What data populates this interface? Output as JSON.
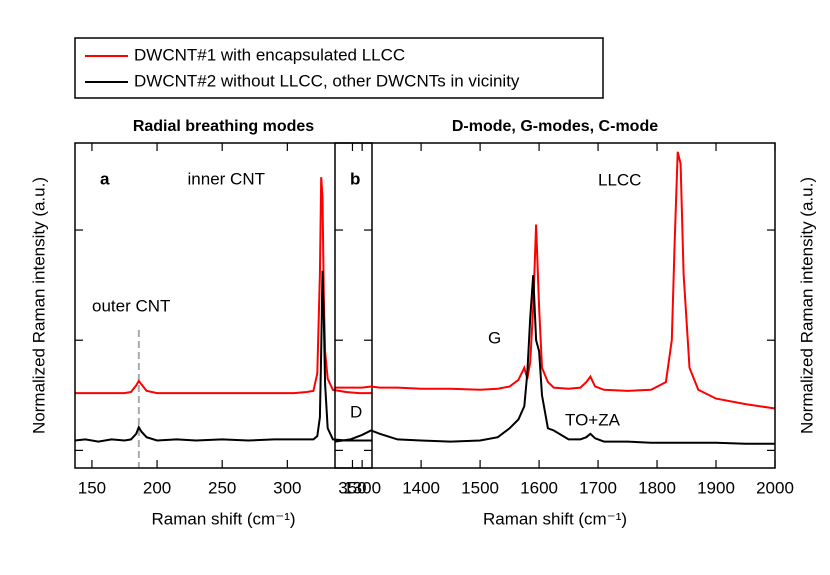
{
  "chart_data": [
    {
      "type": "line",
      "title": "Radial breathing modes",
      "x_label": "Raman shift (cm⁻¹)",
      "y_label": "Normalized Raman intensity (a.u.)",
      "xlim": [
        137,
        365
      ],
      "xticks": [
        150,
        200,
        250,
        300,
        350
      ],
      "ylim": [
        -0.16,
        2.79
      ],
      "yticks": [
        0,
        1,
        2
      ],
      "x": [
        137,
        145,
        155,
        165,
        175,
        180,
        184,
        186,
        188,
        192,
        200,
        215,
        230,
        250,
        270,
        290,
        305,
        315,
        320,
        323,
        325,
        326,
        327,
        328,
        329,
        331,
        335,
        345,
        355,
        365
      ],
      "series": [
        {
          "name": "DWCNT#1 with encapsulated LLCC",
          "color": "#ff0000",
          "values": [
            0.52,
            0.52,
            0.52,
            0.52,
            0.52,
            0.53,
            0.59,
            0.63,
            0.6,
            0.54,
            0.52,
            0.52,
            0.52,
            0.52,
            0.52,
            0.52,
            0.52,
            0.53,
            0.54,
            0.7,
            1.6,
            2.48,
            2.3,
            1.4,
            0.9,
            0.65,
            0.55,
            0.53,
            0.52,
            0.52
          ]
        },
        {
          "name": "DWCNT#2 without LLCC, other DWCNTs in vicinity",
          "color": "#000000",
          "values": [
            0.09,
            0.1,
            0.08,
            0.1,
            0.09,
            0.1,
            0.15,
            0.21,
            0.17,
            0.12,
            0.09,
            0.1,
            0.09,
            0.1,
            0.09,
            0.1,
            0.1,
            0.1,
            0.1,
            0.13,
            0.3,
            0.9,
            1.63,
            1.2,
            0.6,
            0.2,
            0.1,
            0.09,
            0.09,
            0.09
          ]
        }
      ],
      "vline": 186,
      "annotations": [
        {
          "text": "a",
          "color": "#000000"
        },
        {
          "text": "inner CNT",
          "color": "#808080"
        },
        {
          "text": "outer CNT",
          "color": "#808080"
        }
      ]
    },
    {
      "type": "line",
      "title": "D-mode, G-modes, C-mode",
      "x_label": "Raman shift (cm⁻¹)",
      "y_label": "Normalized Raman intensity (a.u.)",
      "xlim": [
        1254,
        2000
      ],
      "xticks": [
        1300,
        1400,
        1500,
        1600,
        1700,
        1800,
        1900,
        2000
      ],
      "ylim": [
        -0.16,
        2.79
      ],
      "yticks": [
        0,
        1,
        2
      ],
      "x": [
        1254,
        1280,
        1300,
        1315,
        1330,
        1360,
        1400,
        1450,
        1500,
        1530,
        1550,
        1565,
        1575,
        1580,
        1585,
        1590,
        1595,
        1600,
        1605,
        1615,
        1625,
        1650,
        1670,
        1680,
        1687,
        1695,
        1710,
        1750,
        1790,
        1815,
        1825,
        1830,
        1835,
        1840,
        1845,
        1855,
        1870,
        1900,
        1950,
        2000
      ],
      "series": [
        {
          "color": "#ff0000",
          "values": [
            0.57,
            0.57,
            0.57,
            0.58,
            0.57,
            0.57,
            0.56,
            0.56,
            0.55,
            0.56,
            0.58,
            0.64,
            0.75,
            0.65,
            0.8,
            1.3,
            2.05,
            1.3,
            0.75,
            0.62,
            0.57,
            0.56,
            0.57,
            0.62,
            0.67,
            0.58,
            0.55,
            0.54,
            0.55,
            0.62,
            1.0,
            1.9,
            2.71,
            2.6,
            1.6,
            0.75,
            0.55,
            0.47,
            0.42,
            0.38
          ]
        },
        {
          "color": "#000000",
          "values": [
            0.08,
            0.1,
            0.14,
            0.18,
            0.15,
            0.1,
            0.09,
            0.08,
            0.09,
            0.12,
            0.2,
            0.28,
            0.4,
            0.7,
            1.2,
            1.59,
            1.0,
            0.9,
            0.5,
            0.2,
            0.18,
            0.1,
            0.1,
            0.12,
            0.15,
            0.11,
            0.08,
            0.08,
            0.07,
            0.07,
            0.07,
            0.07,
            0.07,
            0.07,
            0.07,
            0.07,
            0.07,
            0.07,
            0.06,
            0.06
          ]
        }
      ],
      "annotations": [
        {
          "text": "b",
          "color": "#000000"
        },
        {
          "text": "LLCC",
          "color": "#ff0000"
        },
        {
          "text": "G",
          "color": "#808080"
        },
        {
          "text": "D",
          "color": "#808080"
        },
        {
          "text": "TO+ZA",
          "color": "#808080"
        }
      ]
    }
  ]
}
